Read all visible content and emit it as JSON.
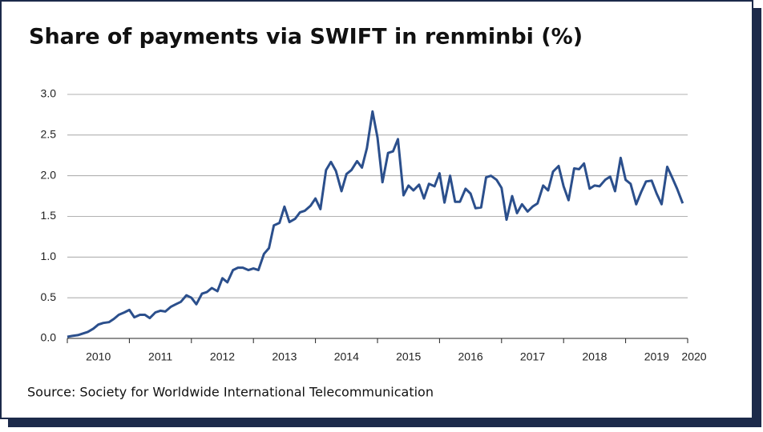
{
  "chart_data": {
    "type": "line",
    "title": "Share of payments via SWIFT in renminbi (%)",
    "source": "Source: Society for Worldwide International Telecommunication",
    "x": [
      2010.0,
      2010.08,
      2010.17,
      2010.25,
      2010.33,
      2010.42,
      2010.5,
      2010.58,
      2010.67,
      2010.75,
      2010.83,
      2010.92,
      2011.0,
      2011.08,
      2011.17,
      2011.25,
      2011.33,
      2011.42,
      2011.5,
      2011.58,
      2011.67,
      2011.75,
      2011.83,
      2011.92,
      2012.0,
      2012.08,
      2012.17,
      2012.25,
      2012.33,
      2012.42,
      2012.5,
      2012.58,
      2012.67,
      2012.75,
      2012.83,
      2012.92,
      2013.0,
      2013.08,
      2013.17,
      2013.25,
      2013.33,
      2013.42,
      2013.5,
      2013.58,
      2013.67,
      2013.75,
      2013.83,
      2013.92,
      2014.0,
      2014.08,
      2014.17,
      2014.25,
      2014.33,
      2014.42,
      2014.5,
      2014.58,
      2014.67,
      2014.75,
      2014.83,
      2014.92,
      2015.0,
      2015.08,
      2015.17,
      2015.25,
      2015.33,
      2015.42,
      2015.5,
      2015.58,
      2015.67,
      2015.75,
      2015.83,
      2015.92,
      2016.0,
      2016.08,
      2016.17,
      2016.25,
      2016.33,
      2016.42,
      2016.5,
      2016.58,
      2016.67,
      2016.75,
      2016.83,
      2016.92,
      2017.0,
      2017.08,
      2017.17,
      2017.25,
      2017.33,
      2017.42,
      2017.5,
      2017.58,
      2017.67,
      2017.75,
      2017.83,
      2017.92,
      2018.0,
      2018.08,
      2018.17,
      2018.25,
      2018.33,
      2018.42,
      2018.5,
      2018.58,
      2018.67,
      2018.75,
      2018.83,
      2018.92,
      2019.0,
      2019.08,
      2019.17,
      2019.25,
      2019.33,
      2019.42,
      2019.5,
      2019.58,
      2019.67,
      2019.75,
      2019.83,
      2019.92
    ],
    "series": [
      {
        "name": "Renminbi share",
        "color": "#2b4f8c",
        "values": [
          0.02,
          0.03,
          0.04,
          0.06,
          0.08,
          0.12,
          0.17,
          0.19,
          0.2,
          0.24,
          0.29,
          0.32,
          0.35,
          0.26,
          0.29,
          0.29,
          0.25,
          0.32,
          0.34,
          0.33,
          0.39,
          0.42,
          0.45,
          0.53,
          0.5,
          0.42,
          0.55,
          0.57,
          0.62,
          0.58,
          0.74,
          0.69,
          0.84,
          0.87,
          0.87,
          0.84,
          0.86,
          0.84,
          1.04,
          1.11,
          1.39,
          1.42,
          1.62,
          1.43,
          1.47,
          1.55,
          1.57,
          1.63,
          1.72,
          1.59,
          2.07,
          2.17,
          2.06,
          1.81,
          2.02,
          2.07,
          2.18,
          2.1,
          2.34,
          2.79,
          2.47,
          1.92,
          2.28,
          2.3,
          2.45,
          1.76,
          1.88,
          1.82,
          1.89,
          1.72,
          1.9,
          1.87,
          2.03,
          1.67,
          2.0,
          1.68,
          1.68,
          1.84,
          1.78,
          1.6,
          1.61,
          1.98,
          2.0,
          1.95,
          1.85,
          1.46,
          1.75,
          1.54,
          1.65,
          1.56,
          1.62,
          1.66,
          1.88,
          1.82,
          2.05,
          2.12,
          1.87,
          1.7,
          2.09,
          2.08,
          2.15,
          1.84,
          1.88,
          1.87,
          1.95,
          1.99,
          1.81,
          2.22,
          1.95,
          1.9,
          1.65,
          1.8,
          1.93,
          1.94,
          1.78,
          1.65,
          2.11,
          1.98,
          1.84,
          1.66
        ]
      }
    ],
    "xlim": [
      2010,
      2020
    ],
    "xticks": [
      2010,
      2011,
      2012,
      2013,
      2014,
      2015,
      2016,
      2017,
      2018,
      2019,
      2020
    ],
    "ylim": [
      0,
      3
    ],
    "yticks": [
      {
        "value": 0,
        "label": "0.0"
      },
      {
        "value": 0.5,
        "label": "0.5"
      },
      {
        "value": 1,
        "label": "1.0"
      },
      {
        "value": 1.5,
        "label": "1.5"
      },
      {
        "value": 2,
        "label": "2.0"
      },
      {
        "value": 2.5,
        "label": "2.5"
      },
      {
        "value": 3,
        "label": "3.0"
      }
    ],
    "grid": true
  }
}
